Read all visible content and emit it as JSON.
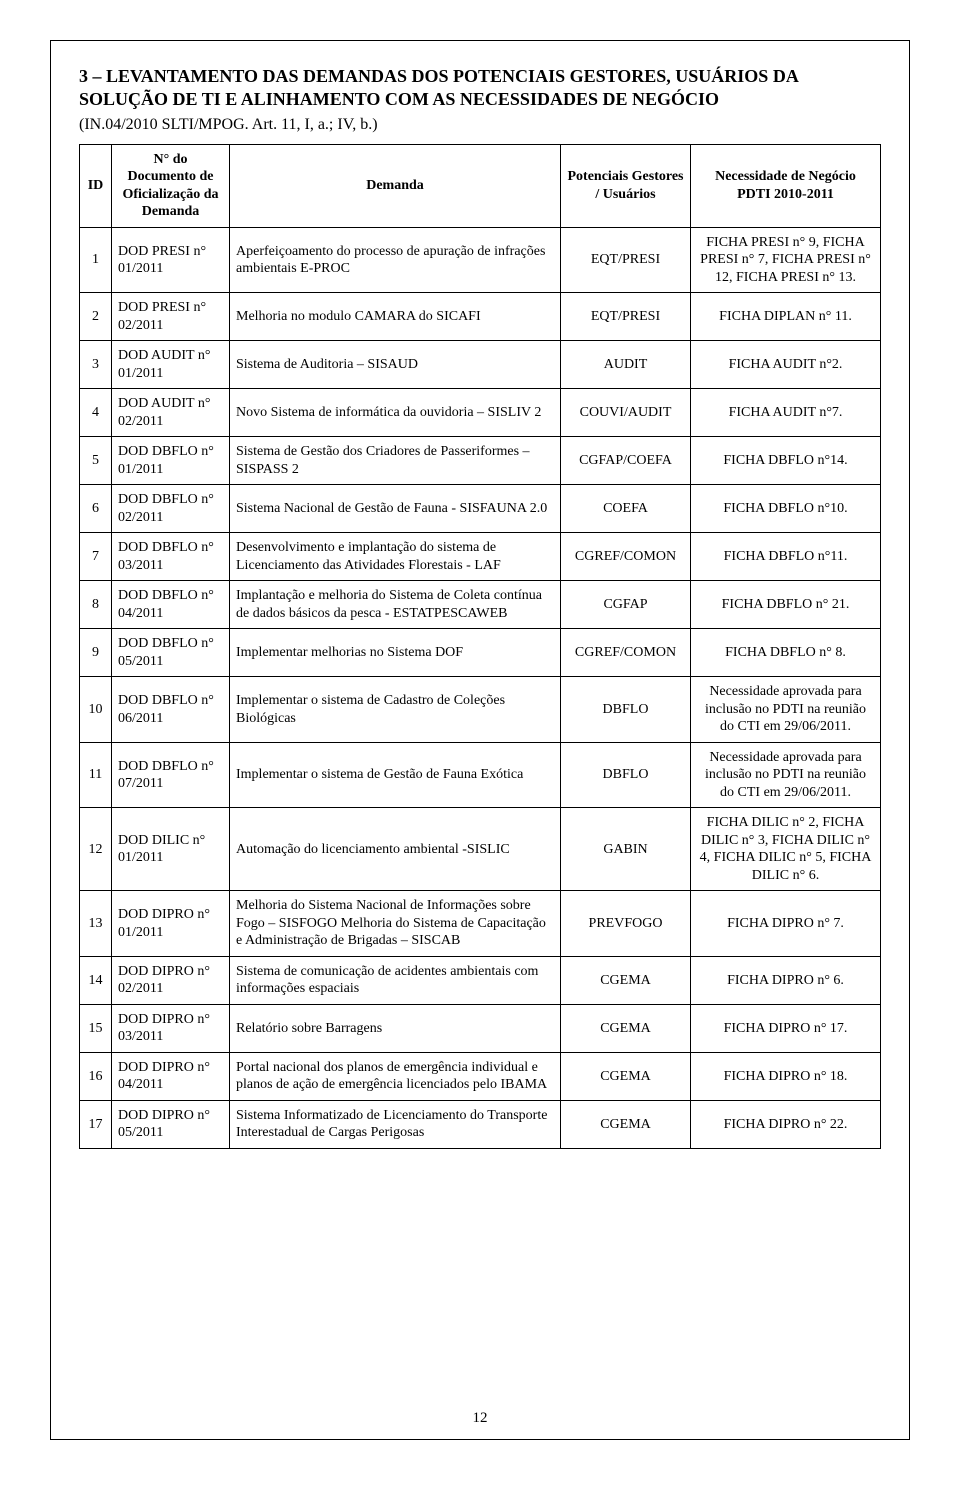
{
  "section_title": "3 – LEVANTAMENTO DAS DEMANDAS DOS POTENCIAIS GESTORES, USUÁRIOS DA SOLUÇÃO DE TI E ALINHAMENTO COM AS NECESSIDADES DE NEGÓCIO",
  "subtitle": "(IN.04/2010 SLTI/MPOG. Art. 11, I, a.; IV, b.)",
  "headers": {
    "id": "ID",
    "doc": "N° do Documento de Oficialização da Demanda",
    "demanda": "Demanda",
    "gest": "Potenciais Gestores / Usuários",
    "neces": "Necessidade de Negócio PDTI 2010-2011"
  },
  "rows": [
    {
      "id": "1",
      "doc": "DOD  PRESI n° 01/2011",
      "demanda": "Aperfeiçoamento do processo de apuração de infrações ambientais E-PROC",
      "gest": "EQT/PRESI",
      "neces": "FICHA PRESI n° 9, FICHA PRESI n° 7, FICHA PRESI n° 12, FICHA PRESI n° 13."
    },
    {
      "id": "2",
      "doc": "DOD PRESI n° 02/2011",
      "demanda": "Melhoria no modulo CAMARA do SICAFI",
      "gest": "EQT/PRESI",
      "neces": "FICHA DIPLAN n° 11."
    },
    {
      "id": "3",
      "doc": "DOD AUDIT n° 01/2011",
      "demanda": "Sistema de Auditoria – SISAUD",
      "gest": "AUDIT",
      "neces": "FICHA AUDIT n°2."
    },
    {
      "id": "4",
      "doc": "DOD AUDIT n° 02/2011",
      "demanda": "Novo Sistema de informática da ouvidoria – SISLIV 2",
      "gest": "COUVI/AUDIT",
      "neces": "FICHA AUDIT n°7."
    },
    {
      "id": "5",
      "doc": "DOD DBFLO n° 01/2011",
      "demanda": "Sistema de Gestão dos Criadores de Passeriformes – SISPASS 2",
      "gest": "CGFAP/COEFA",
      "neces": "FICHA DBFLO n°14."
    },
    {
      "id": "6",
      "doc": "DOD DBFLO n° 02/2011",
      "demanda": "Sistema Nacional de Gestão de Fauna - SISFAUNA 2.0",
      "gest": "COEFA",
      "neces": "FICHA DBFLO n°10."
    },
    {
      "id": "7",
      "doc": "DOD DBFLO n° 03/2011",
      "demanda": "Desenvolvimento e implantação do sistema de Licenciamento das Atividades Florestais -  LAF",
      "gest": "CGREF/COMON",
      "neces": "FICHA DBFLO n°11."
    },
    {
      "id": "8",
      "doc": "DOD DBFLO n° 04/2011",
      "demanda": "Implantação e melhoria do Sistema de Coleta contínua de dados básicos da pesca - ESTATPESCAWEB",
      "gest": "CGFAP",
      "neces": "FICHA DBFLO n° 21."
    },
    {
      "id": "9",
      "doc": "DOD DBFLO n° 05/2011",
      "demanda": "Implementar melhorias no Sistema DOF",
      "gest": "CGREF/COMON",
      "neces": "FICHA DBFLO n° 8."
    },
    {
      "id": "10",
      "doc": "DOD DBFLO n° 06/2011",
      "demanda": "Implementar o sistema de Cadastro de Coleções Biológicas",
      "gest": "DBFLO",
      "neces": "Necessidade aprovada para inclusão no PDTI na reunião do CTI em 29/06/2011."
    },
    {
      "id": "11",
      "doc": "DOD DBFLO n° 07/2011",
      "demanda": "Implementar o sistema de Gestão de Fauna Exótica",
      "gest": "DBFLO",
      "neces": "Necessidade aprovada para inclusão no PDTI na reunião do CTI em 29/06/2011."
    },
    {
      "id": "12",
      "doc": "DOD DILIC n° 01/2011",
      "demanda": "Automação do licenciamento ambiental -SISLIC",
      "gest": "GABIN",
      "neces": "FICHA DILIC n° 2, FICHA DILIC n° 3, FICHA DILIC n° 4, FICHA DILIC n° 5, FICHA DILIC n° 6."
    },
    {
      "id": "13",
      "doc": "DOD DIPRO n° 01/2011",
      "demanda": "Melhoria do Sistema Nacional de Informações sobre Fogo – SISFOGO\nMelhoria do Sistema de Capacitação e Administração de Brigadas – SISCAB",
      "gest": "PREVFOGO",
      "neces": "FICHA DIPRO n° 7."
    },
    {
      "id": "14",
      "doc": "DOD DIPRO n° 02/2011",
      "demanda": "Sistema de comunicação de acidentes ambientais com informações espaciais",
      "gest": "CGEMA",
      "neces": "FICHA DIPRO n° 6."
    },
    {
      "id": "15",
      "doc": "DOD DIPRO n° 03/2011",
      "demanda": "Relatório sobre Barragens",
      "gest": "CGEMA",
      "neces": "FICHA DIPRO n° 17."
    },
    {
      "id": "16",
      "doc": "DOD DIPRO n° 04/2011",
      "demanda": "Portal nacional dos planos de emergência individual e planos de ação de emergência licenciados pelo IBAMA",
      "gest": "CGEMA",
      "neces": "FICHA DIPRO n° 18."
    },
    {
      "id": "17",
      "doc": "DOD DIPRO n° 05/2011",
      "demanda": "Sistema Informatizado de Licenciamento do Transporte Interestadual de Cargas Perigosas",
      "gest": "CGEMA",
      "neces": "FICHA DIPRO n° 22."
    }
  ],
  "page_number": "12"
}
